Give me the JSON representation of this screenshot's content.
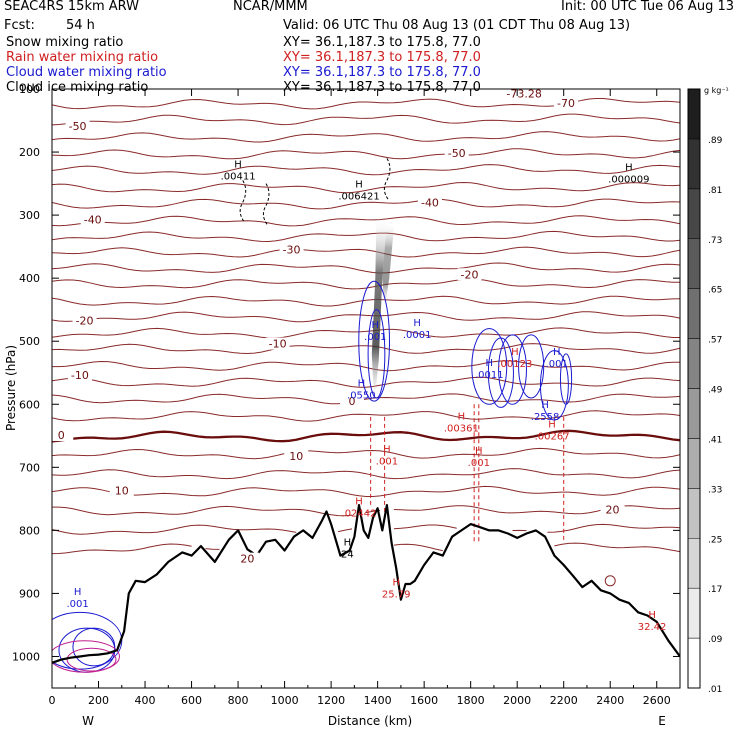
{
  "header": {
    "model": "SEAC4RS 15km ARW",
    "center": "NCAR/MMM",
    "init": "Init: 00 UTC Tue 06 Aug 13",
    "fcst_label": "Fcst:",
    "fcst_value": "54 h",
    "valid": "Valid: 06 UTC Thu 08 Aug 13 (01 CDT Thu 08 Aug 13)"
  },
  "fields": [
    {
      "name": "Snow mixing ratio",
      "xy": "XY=  36.1,187.3 to 175.8, 77.0",
      "color": "#000000"
    },
    {
      "name": "Rain water mixing ratio",
      "xy": "XY=  36.1,187.3 to 175.8, 77.0",
      "color": "#d02020"
    },
    {
      "name": "Cloud water mixing ratio",
      "xy": "XY=  36.1,187.3 to 175.8, 77.0",
      "color": "#1a1ad0"
    },
    {
      "name": "Cloud ice mixing ratio",
      "xy": "XY=  36.1,187.3 to 175.8, 77.0",
      "color": "#000000"
    }
  ],
  "chart_data": {
    "type": "heatmap",
    "xlabel": "Distance (km)",
    "ylabel": "Pressure (hPa)",
    "xlim": [
      0,
      2700
    ],
    "ylim": [
      1050,
      100
    ],
    "x_ticks": [
      0,
      200,
      400,
      600,
      800,
      1000,
      1200,
      1400,
      1600,
      1800,
      2000,
      2200,
      2400,
      2600
    ],
    "y_ticks": [
      100,
      200,
      300,
      400,
      500,
      600,
      700,
      800,
      900,
      1000
    ],
    "y_tick_labels": [
      "100",
      "200",
      "300",
      "400",
      "500",
      "600",
      "700",
      "800",
      "900",
      "1000"
    ],
    "x_end_labels": {
      "left": "W",
      "right": "E"
    },
    "colorbar": {
      "unit": "g kg⁻¹",
      "levels": [
        ".01",
        ".09",
        ".17",
        ".25",
        ".33",
        ".41",
        ".49",
        ".57",
        ".65",
        ".73",
        ".81",
        ".89"
      ]
    },
    "temperature_isotherms": [
      -70,
      -60,
      -50,
      -40,
      -30,
      -20,
      -10,
      0,
      10,
      20
    ],
    "temperature_labels": [
      {
        "text": "-73.28",
        "x": 2030,
        "p": 110
      },
      {
        "text": "-70",
        "x": 2210,
        "p": 125
      },
      {
        "text": "-50",
        "x": 110,
        "p": 162
      },
      {
        "text": "-50",
        "x": 1740,
        "p": 205
      },
      {
        "text": "-40",
        "x": 1625,
        "p": 283
      },
      {
        "text": "-40",
        "x": 175,
        "p": 310
      },
      {
        "text": "-30",
        "x": 1030,
        "p": 358
      },
      {
        "text": "-20",
        "x": 1795,
        "p": 397
      },
      {
        "text": "-20",
        "x": 140,
        "p": 470
      },
      {
        "text": "-10",
        "x": 970,
        "p": 507
      },
      {
        "text": "-10",
        "x": 120,
        "p": 557
      },
      {
        "text": "0",
        "x": 1290,
        "p": 598
      },
      {
        "text": "0",
        "x": 40,
        "p": 652
      },
      {
        "text": "10",
        "x": 1050,
        "p": 685
      },
      {
        "text": "10",
        "x": 300,
        "p": 740
      },
      {
        "text": "20",
        "x": 2410,
        "p": 770
      },
      {
        "text": "20",
        "x": 840,
        "p": 848
      }
    ],
    "extrema_labels": [
      {
        "text": ".00411",
        "x": 800,
        "p": 240,
        "color": "#000000"
      },
      {
        "text": ".006421",
        "x": 1320,
        "p": 272,
        "color": "#000000"
      },
      {
        "text": ".000009",
        "x": 2480,
        "p": 245,
        "color": "#000000"
      },
      {
        "text": ".0001",
        "x": 1570,
        "p": 492,
        "color": "#1a1ad0"
      },
      {
        "text": ".001",
        "x": 1390,
        "p": 495,
        "color": "#1a1ad0"
      },
      {
        "text": ".0550",
        "x": 1330,
        "p": 588,
        "color": "#1a1ad0"
      },
      {
        "text": ".0011",
        "x": 1880,
        "p": 555,
        "color": "#1a1ad0"
      },
      {
        "text": ".00123",
        "x": 1990,
        "p": 538,
        "color": "#d02020"
      },
      {
        "text": ".001",
        "x": 2170,
        "p": 538,
        "color": "#1a1ad0"
      },
      {
        "text": ".2558",
        "x": 2120,
        "p": 622,
        "color": "#1a1ad0"
      },
      {
        "text": ".00361",
        "x": 1760,
        "p": 640,
        "color": "#d02020"
      },
      {
        "text": ".00267",
        "x": 2150,
        "p": 653,
        "color": "#d02020"
      },
      {
        "text": ".001",
        "x": 1440,
        "p": 692,
        "color": "#d02020"
      },
      {
        "text": ".001",
        "x": 1835,
        "p": 695,
        "color": "#d02020"
      },
      {
        "text": ".02442",
        "x": 1320,
        "p": 775,
        "color": "#d02020"
      },
      {
        "text": "24",
        "x": 1270,
        "p": 840,
        "color": "#000000"
      },
      {
        "text": "25.79",
        "x": 1480,
        "p": 903,
        "color": "#d02020"
      },
      {
        "text": "32.42",
        "x": 2580,
        "p": 955,
        "color": "#d02020"
      },
      {
        "text": ".001",
        "x": 110,
        "p": 918,
        "color": "#1a1ad0"
      }
    ],
    "terrain": {
      "x": [
        0,
        40,
        80,
        120,
        160,
        200,
        240,
        280,
        310,
        330,
        360,
        400,
        450,
        500,
        560,
        600,
        640,
        700,
        760,
        800,
        840,
        880,
        920,
        960,
        1000,
        1040,
        1080,
        1120,
        1160,
        1180,
        1200,
        1240,
        1280,
        1300,
        1320,
        1340,
        1360,
        1380,
        1400,
        1420,
        1440,
        1460,
        1480,
        1500,
        1520,
        1540,
        1560,
        1600,
        1640,
        1680,
        1720,
        1760,
        1800,
        1840,
        1880,
        1920,
        1960,
        2000,
        2040,
        2080,
        2120,
        2160,
        2200,
        2240,
        2280,
        2320,
        2360,
        2400,
        2440,
        2480,
        2520,
        2560,
        2600,
        2650,
        2700
      ],
      "p": [
        1010,
        1005,
        1002,
        1000,
        998,
        997,
        995,
        990,
        960,
        900,
        880,
        882,
        870,
        850,
        835,
        840,
        825,
        850,
        815,
        800,
        830,
        840,
        818,
        815,
        832,
        810,
        800,
        812,
        785,
        770,
        790,
        840,
        832,
        810,
        760,
        800,
        812,
        780,
        765,
        800,
        760,
        820,
        860,
        910,
        885,
        885,
        880,
        855,
        835,
        840,
        810,
        800,
        790,
        795,
        800,
        800,
        805,
        812,
        805,
        800,
        810,
        840,
        855,
        872,
        890,
        880,
        895,
        900,
        910,
        915,
        930,
        935,
        945,
        975,
        1000
      ]
    }
  }
}
